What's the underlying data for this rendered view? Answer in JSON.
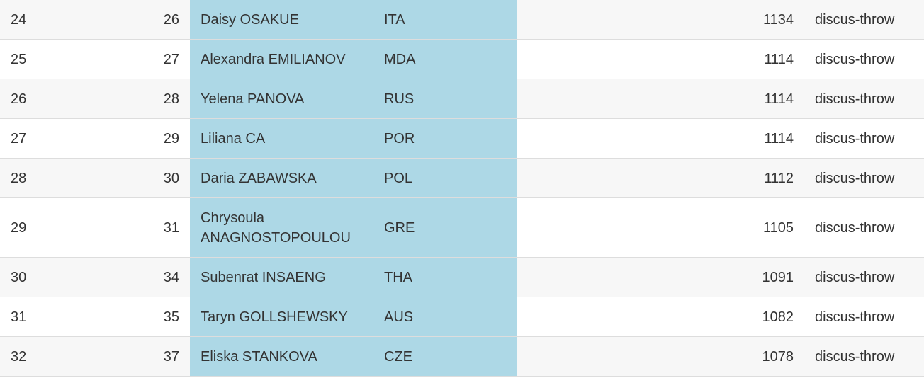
{
  "table": {
    "rows": [
      [
        "24",
        "26",
        "Daisy OSAKUE",
        "ITA",
        "1134",
        "discus-throw"
      ],
      [
        "25",
        "27",
        "Alexandra EMILIANOV",
        "MDA",
        "1114",
        "discus-throw"
      ],
      [
        "26",
        "28",
        "Yelena PANOVA",
        "RUS",
        "1114",
        "discus-throw"
      ],
      [
        "27",
        "29",
        "Liliana CA",
        "POR",
        "1114",
        "discus-throw"
      ],
      [
        "28",
        "30",
        "Daria ZABAWSKA",
        "POL",
        "1112",
        "discus-throw"
      ],
      [
        "29",
        "31",
        "Chrysoula ANAGNOSTOPOULOU",
        "GRE",
        "1105",
        "discus-throw"
      ],
      [
        "30",
        "34",
        "Subenrat INSAENG",
        "THA",
        "1091",
        "discus-throw"
      ],
      [
        "31",
        "35",
        "Taryn GOLLSHEWSKY",
        "AUS",
        "1082",
        "discus-throw"
      ],
      [
        "32",
        "37",
        "Eliska STANKOVA",
        "CZE",
        "1078",
        "discus-throw"
      ]
    ]
  }
}
